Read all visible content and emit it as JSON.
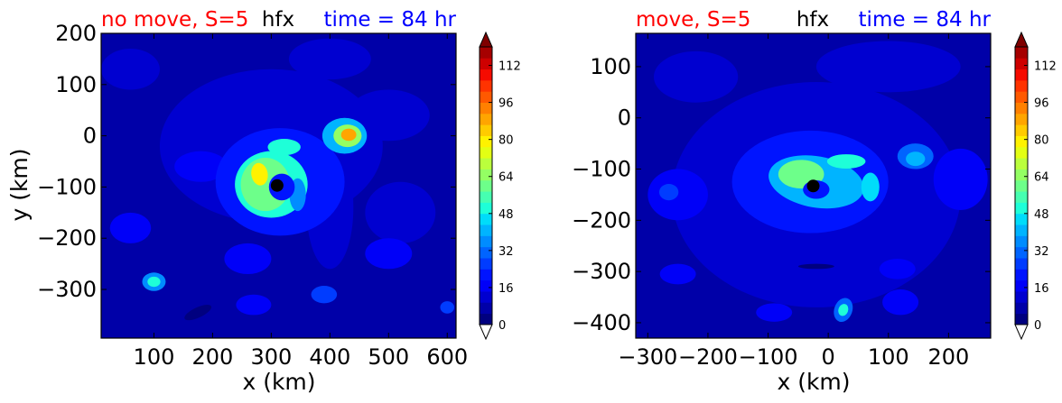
{
  "colorbar_colors": [
    "#00007f",
    "#0000a8",
    "#0000d0",
    "#0000f8",
    "#0014ff",
    "#003cff",
    "#0064ff",
    "#008cff",
    "#00b4ff",
    "#00dcfa",
    "#1effd8",
    "#46ffb1",
    "#6dff8a",
    "#94ff63",
    "#bbff3c",
    "#e3ff14",
    "#fff200",
    "#ffcb00",
    "#ffa500",
    "#ff8000",
    "#ff5900",
    "#ff3300",
    "#f60b00",
    "#ce0000",
    "#a60000"
  ],
  "colorbar_under_color": "#ffffff",
  "colorbar_over_color": "#7f0000",
  "marker_color": "#000000",
  "chart_data": [
    {
      "type": "heatmap",
      "variable": "hfx",
      "title_left": "no move, S=5",
      "title_center": "hfx",
      "title_right": "time = 84 hr",
      "title_left_color": "#ff0000",
      "title_right_color": "#0000ff",
      "xlabel": "x (km)",
      "ylabel": "y (km)",
      "xlim": [
        10,
        615
      ],
      "ylim": [
        -395,
        200
      ],
      "xticks": [
        100,
        200,
        300,
        400,
        500,
        600
      ],
      "yticks": [
        -300,
        -200,
        -100,
        0,
        100,
        200
      ],
      "storm_center": [
        310,
        -97
      ],
      "colorbar": {
        "min": 0,
        "max": 120,
        "step": 4,
        "ticks": [
          0,
          16,
          32,
          48,
          64,
          80,
          96,
          112
        ],
        "extend": "both"
      },
      "features": [
        {
          "kind": "base",
          "value": 9
        },
        {
          "kind": "patch",
          "x": 300,
          "y": -20,
          "rx": 190,
          "ry": 150,
          "rot": 0,
          "value": 12
        },
        {
          "kind": "patch",
          "x": 60,
          "y": 130,
          "rx": 50,
          "ry": 40,
          "rot": 0,
          "value": 14
        },
        {
          "kind": "patch",
          "x": 400,
          "y": 150,
          "rx": 70,
          "ry": 40,
          "rot": 0,
          "value": 14
        },
        {
          "kind": "patch",
          "x": 500,
          "y": 40,
          "rx": 70,
          "ry": 50,
          "rot": 0,
          "value": 14
        },
        {
          "kind": "patch",
          "x": 520,
          "y": -150,
          "rx": 60,
          "ry": 60,
          "rot": 0,
          "value": 13
        },
        {
          "kind": "patch",
          "x": 180,
          "y": -60,
          "rx": 45,
          "ry": 30,
          "rot": 0,
          "value": 16
        },
        {
          "kind": "patch",
          "x": 60,
          "y": -180,
          "rx": 35,
          "ry": 30,
          "rot": 0,
          "value": 15
        },
        {
          "kind": "patch",
          "x": 500,
          "y": -230,
          "rx": 40,
          "ry": 30,
          "rot": 0,
          "value": 15
        },
        {
          "kind": "patch",
          "x": 260,
          "y": -240,
          "rx": 40,
          "ry": 30,
          "rot": 0,
          "value": 15
        },
        {
          "kind": "patch",
          "x": 100,
          "y": -285,
          "rx": 20,
          "ry": 18,
          "rot": 0,
          "value": 38
        },
        {
          "kind": "patch",
          "x": 100,
          "y": -285,
          "rx": 11,
          "ry": 10,
          "rot": 0,
          "value": 52
        },
        {
          "kind": "patch",
          "x": 390,
          "y": -310,
          "rx": 22,
          "ry": 17,
          "rot": 0,
          "value": 24
        },
        {
          "kind": "patch",
          "x": 270,
          "y": -330,
          "rx": 30,
          "ry": 20,
          "rot": 0,
          "value": 16
        },
        {
          "kind": "patch",
          "x": 600,
          "y": -335,
          "rx": 12,
          "ry": 12,
          "rot": 0,
          "value": 24
        },
        {
          "kind": "patch",
          "x": 175,
          "y": -345,
          "rx": 25,
          "ry": 10,
          "rot": 25,
          "value": 4
        },
        {
          "kind": "patch",
          "x": 400,
          "y": -140,
          "rx": 40,
          "ry": 120,
          "rot": 0,
          "value": 14
        },
        {
          "kind": "patch",
          "x": 315,
          "y": -90,
          "rx": 110,
          "ry": 105,
          "rot": 0,
          "value": 22
        },
        {
          "kind": "patch",
          "x": 300,
          "y": -95,
          "rx": 62,
          "ry": 65,
          "rot": 0,
          "value": 48
        },
        {
          "kind": "patch",
          "x": 290,
          "y": -95,
          "rx": 42,
          "ry": 52,
          "rot": 0,
          "value": 60
        },
        {
          "kind": "patch",
          "x": 280,
          "y": -75,
          "rx": 14,
          "ry": 22,
          "rot": 10,
          "value": 80
        },
        {
          "kind": "patch",
          "x": 322,
          "y": -22,
          "rx": 28,
          "ry": 16,
          "rot": 0,
          "value": 52
        },
        {
          "kind": "patch",
          "x": 345,
          "y": -115,
          "rx": 14,
          "ry": 32,
          "rot": 0,
          "value": 36
        },
        {
          "kind": "patch",
          "x": 318,
          "y": -100,
          "rx": 22,
          "ry": 26,
          "rot": 0,
          "value": 22
        },
        {
          "kind": "patch",
          "x": 425,
          "y": 0,
          "rx": 38,
          "ry": 35,
          "rot": 0,
          "value": 40
        },
        {
          "kind": "patch",
          "x": 430,
          "y": 0,
          "rx": 24,
          "ry": 22,
          "rot": 0,
          "value": 66
        },
        {
          "kind": "patch",
          "x": 432,
          "y": 2,
          "rx": 13,
          "ry": 12,
          "rot": 0,
          "value": 90
        }
      ]
    },
    {
      "type": "heatmap",
      "variable": "hfx",
      "title_left": "move, S=5",
      "title_center": "hfx",
      "title_right": "time = 84 hr",
      "title_left_color": "#ff0000",
      "title_right_color": "#0000ff",
      "xlabel": "x (km)",
      "ylabel": "",
      "xlim": [
        -320,
        270
      ],
      "ylim": [
        -430,
        165
      ],
      "xticks": [
        -300,
        -200,
        -100,
        0,
        100,
        200
      ],
      "yticks": [
        -400,
        -300,
        -200,
        -100,
        0,
        100
      ],
      "storm_center": [
        -25,
        -133
      ],
      "colorbar": {
        "min": 0,
        "max": 120,
        "step": 4,
        "ticks": [
          0,
          16,
          32,
          48,
          64,
          80,
          96,
          112
        ],
        "extend": "both"
      },
      "features": [
        {
          "kind": "base",
          "value": 8
        },
        {
          "kind": "patch",
          "x": -20,
          "y": -150,
          "rx": 240,
          "ry": 220,
          "rot": 0,
          "value": 12
        },
        {
          "kind": "patch",
          "x": 100,
          "y": 100,
          "rx": 120,
          "ry": 50,
          "rot": 0,
          "value": 14
        },
        {
          "kind": "patch",
          "x": -220,
          "y": 80,
          "rx": 70,
          "ry": 50,
          "rot": 0,
          "value": 13
        },
        {
          "kind": "patch",
          "x": -250,
          "y": -150,
          "rx": 50,
          "ry": 50,
          "rot": 0,
          "value": 15
        },
        {
          "kind": "patch",
          "x": 220,
          "y": -120,
          "rx": 45,
          "ry": 60,
          "rot": 0,
          "value": 15
        },
        {
          "kind": "patch",
          "x": -30,
          "y": -125,
          "rx": 130,
          "ry": 100,
          "rot": 0,
          "value": 22
        },
        {
          "kind": "patch",
          "x": -20,
          "y": -125,
          "rx": 80,
          "ry": 50,
          "rot": -10,
          "value": 42
        },
        {
          "kind": "patch",
          "x": -45,
          "y": -110,
          "rx": 38,
          "ry": 28,
          "rot": 0,
          "value": 62
        },
        {
          "kind": "patch",
          "x": 30,
          "y": -85,
          "rx": 32,
          "ry": 14,
          "rot": 0,
          "value": 50
        },
        {
          "kind": "patch",
          "x": 70,
          "y": -135,
          "rx": 15,
          "ry": 28,
          "rot": 0,
          "value": 44
        },
        {
          "kind": "patch",
          "x": -20,
          "y": -140,
          "rx": 22,
          "ry": 18,
          "rot": 0,
          "value": 22
        },
        {
          "kind": "patch",
          "x": 145,
          "y": -75,
          "rx": 30,
          "ry": 25,
          "rot": 0,
          "value": 30
        },
        {
          "kind": "patch",
          "x": 145,
          "y": -80,
          "rx": 16,
          "ry": 14,
          "rot": 0,
          "value": 42
        },
        {
          "kind": "patch",
          "x": 25,
          "y": -375,
          "rx": 15,
          "ry": 24,
          "rot": -20,
          "value": 30
        },
        {
          "kind": "patch",
          "x": 25,
          "y": -375,
          "rx": 8,
          "ry": 12,
          "rot": -20,
          "value": 48
        },
        {
          "kind": "patch",
          "x": -90,
          "y": -380,
          "rx": 30,
          "ry": 18,
          "rot": 0,
          "value": 18
        },
        {
          "kind": "patch",
          "x": 120,
          "y": -360,
          "rx": 30,
          "ry": 25,
          "rot": 0,
          "value": 17
        },
        {
          "kind": "patch",
          "x": -250,
          "y": -305,
          "rx": 30,
          "ry": 20,
          "rot": 0,
          "value": 15
        },
        {
          "kind": "patch",
          "x": -265,
          "y": -145,
          "rx": 16,
          "ry": 16,
          "rot": 0,
          "value": 26
        },
        {
          "kind": "patch",
          "x": 115,
          "y": -295,
          "rx": 30,
          "ry": 20,
          "rot": 0,
          "value": 16
        },
        {
          "kind": "patch",
          "x": -20,
          "y": -290,
          "rx": 30,
          "ry": 5,
          "rot": 0,
          "value": 4
        }
      ]
    }
  ]
}
